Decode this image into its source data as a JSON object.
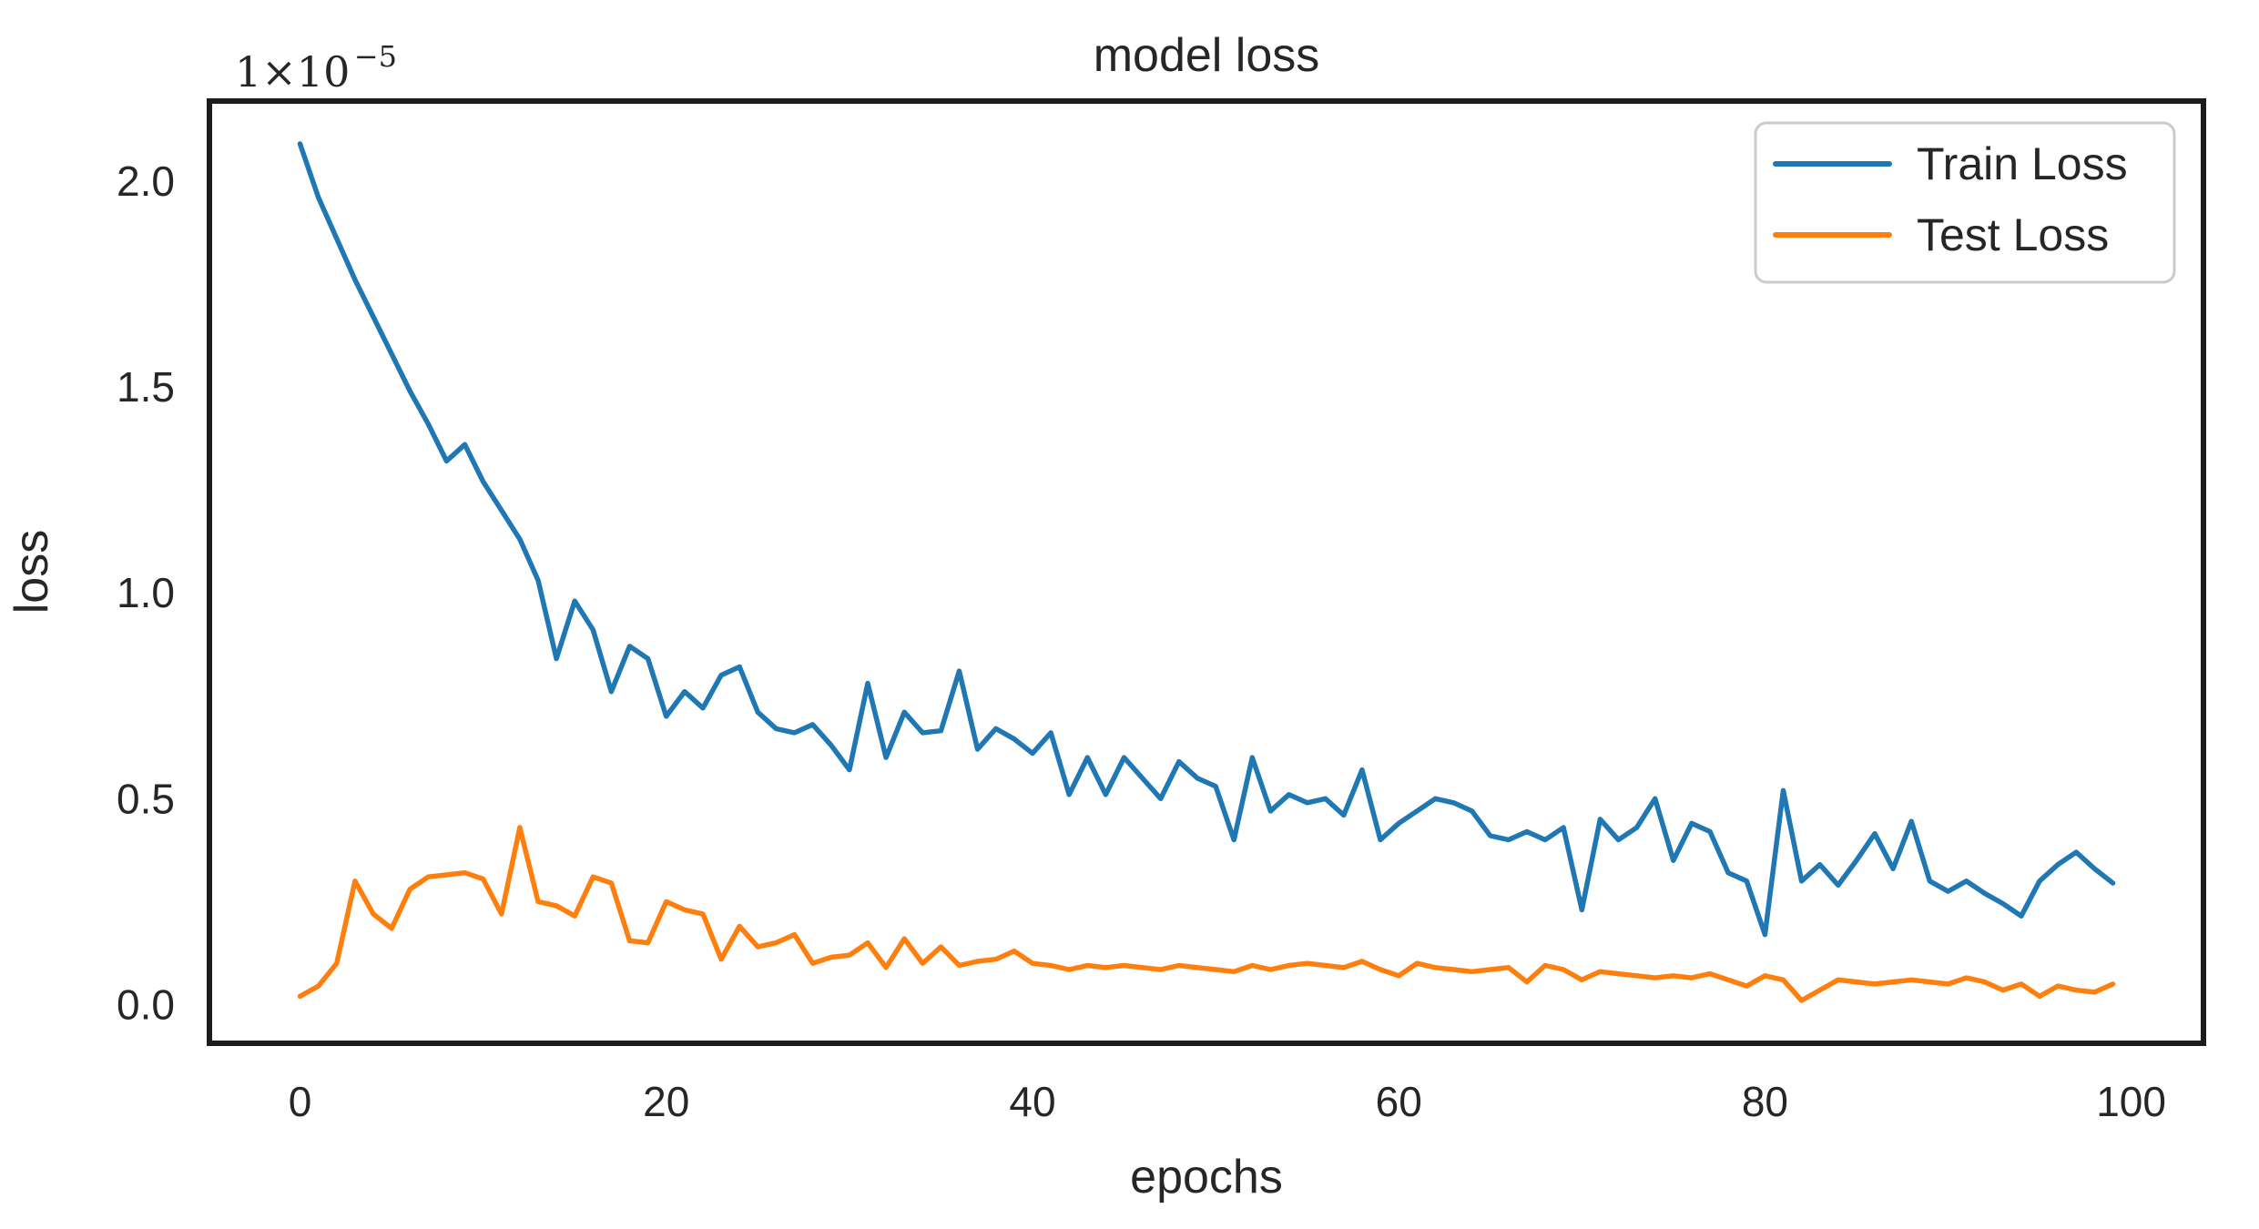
{
  "chart_data": {
    "type": "line",
    "title": "model loss",
    "xlabel": "epochs",
    "ylabel": "loss",
    "y_axis_offset_text": "1×10⁻⁵",
    "y_axis_offset_mantissa": "1×10",
    "y_axis_offset_exponent": "−5",
    "x_ticks": [
      0,
      20,
      40,
      60,
      80,
      100
    ],
    "y_ticks": [
      "0.0",
      "0.5",
      "1.0",
      "1.5",
      "2.0"
    ],
    "y_tick_values": [
      0.0,
      0.5,
      1.0,
      1.5,
      2.0
    ],
    "xlim": [
      -4.95,
      103.95
    ],
    "ylim": [
      -0.094,
      2.194
    ],
    "grid": false,
    "legend_position": "upper right",
    "x_unit": "epoch index 0..99",
    "y_scale_factor": "1e-5",
    "series": [
      {
        "name": "Train Loss",
        "color": "#1f77b4",
        "values": [
          2.09,
          1.96,
          1.86,
          1.76,
          1.67,
          1.58,
          1.49,
          1.41,
          1.32,
          1.36,
          1.27,
          1.2,
          1.13,
          1.03,
          0.84,
          0.98,
          0.91,
          0.76,
          0.87,
          0.84,
          0.7,
          0.76,
          0.72,
          0.8,
          0.82,
          0.71,
          0.67,
          0.66,
          0.68,
          0.63,
          0.57,
          0.78,
          0.6,
          0.71,
          0.66,
          0.665,
          0.81,
          0.62,
          0.67,
          0.645,
          0.61,
          0.66,
          0.51,
          0.6,
          0.51,
          0.6,
          0.55,
          0.5,
          0.59,
          0.55,
          0.53,
          0.4,
          0.6,
          0.47,
          0.51,
          0.49,
          0.5,
          0.46,
          0.57,
          0.4,
          0.44,
          0.47,
          0.5,
          0.49,
          0.47,
          0.41,
          0.4,
          0.42,
          0.4,
          0.43,
          0.23,
          0.45,
          0.4,
          0.43,
          0.5,
          0.35,
          0.44,
          0.42,
          0.32,
          0.3,
          0.17,
          0.52,
          0.3,
          0.34,
          0.29,
          0.35,
          0.415,
          0.33,
          0.445,
          0.3,
          0.275,
          0.3,
          0.27,
          0.245,
          0.215,
          0.3,
          0.34,
          0.37,
          0.33,
          0.295
        ]
      },
      {
        "name": "Test Loss",
        "color": "#ff7f0e",
        "values": [
          0.02,
          0.045,
          0.1,
          0.3,
          0.22,
          0.185,
          0.28,
          0.31,
          0.315,
          0.32,
          0.305,
          0.22,
          0.43,
          0.25,
          0.24,
          0.215,
          0.31,
          0.295,
          0.155,
          0.15,
          0.25,
          0.23,
          0.22,
          0.11,
          0.19,
          0.14,
          0.15,
          0.17,
          0.1,
          0.115,
          0.12,
          0.15,
          0.09,
          0.16,
          0.1,
          0.14,
          0.095,
          0.105,
          0.11,
          0.13,
          0.1,
          0.095,
          0.085,
          0.095,
          0.09,
          0.095,
          0.09,
          0.085,
          0.095,
          0.09,
          0.085,
          0.08,
          0.095,
          0.085,
          0.095,
          0.1,
          0.095,
          0.09,
          0.105,
          0.085,
          0.07,
          0.1,
          0.09,
          0.085,
          0.08,
          0.085,
          0.09,
          0.055,
          0.095,
          0.085,
          0.06,
          0.08,
          0.075,
          0.07,
          0.065,
          0.07,
          0.065,
          0.075,
          0.06,
          0.045,
          0.07,
          0.06,
          0.01,
          0.035,
          0.06,
          0.055,
          0.05,
          0.055,
          0.06,
          0.055,
          0.05,
          0.065,
          0.055,
          0.035,
          0.05,
          0.02,
          0.045,
          0.035,
          0.03,
          0.05
        ]
      }
    ]
  },
  "colors": {
    "background": "#ffffff",
    "text": "#262626",
    "spine": "#1c1c1c",
    "legend_border": "#cbcbcb"
  }
}
